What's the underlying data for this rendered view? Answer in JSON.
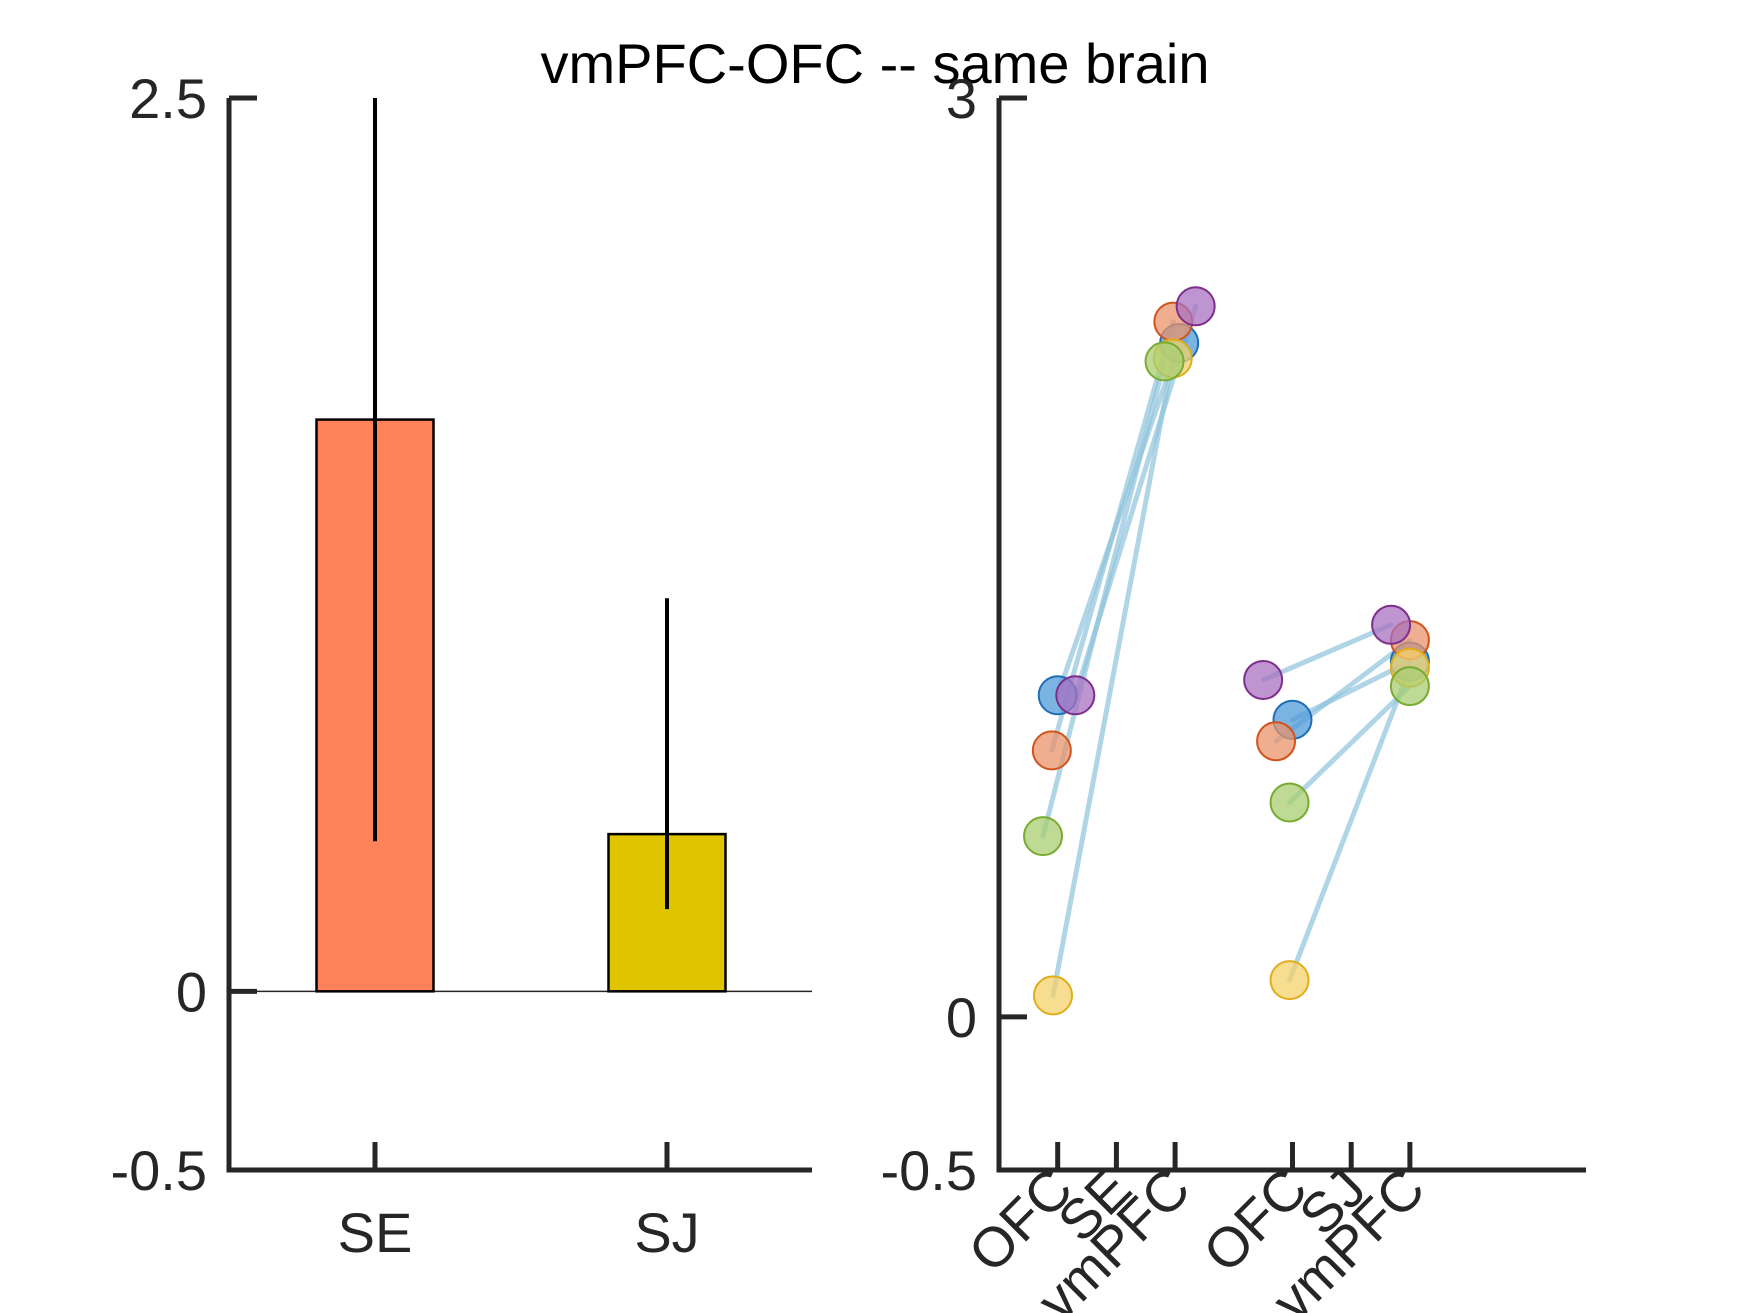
{
  "title": "vmPFC-OFC -- same brain",
  "chart_data": [
    {
      "type": "bar",
      "categories": [
        "SE",
        "SJ"
      ],
      "values": [
        1.6,
        0.44
      ],
      "error_low": [
        0.42,
        0.23
      ],
      "error_high": [
        2.5,
        1.1
      ],
      "colors": [
        "#ff8259",
        "#e0c400"
      ],
      "ylim": [
        -0.5,
        2.5
      ],
      "yticks": [
        "-0.5",
        "0",
        "2.5"
      ],
      "ytick_values": [
        -0.5,
        0,
        2.5
      ]
    },
    {
      "type": "scatter",
      "ylim": [
        -0.5,
        3
      ],
      "yticks": [
        "-0.5",
        "0",
        "3"
      ],
      "ytick_values": [
        -0.5,
        0,
        3
      ],
      "xtick_labels": [
        "OFC",
        "SE",
        "vmPFC",
        "OFC",
        "SJ",
        "vmPFC"
      ],
      "xtick_values": [
        1,
        2,
        3,
        5,
        6,
        7
      ],
      "xlim": [
        0,
        10
      ],
      "line_color": "#8fc3dc",
      "series": [
        {
          "color": "#4f9ad8",
          "edge": "#1f6fb6",
          "se": [
            1.05,
            2.2
          ],
          "sj": [
            0.97,
            1.16
          ]
        },
        {
          "color": "#e9936b",
          "edge": "#d2531b",
          "se": [
            0.87,
            2.27
          ],
          "sj": [
            0.9,
            1.23
          ]
        },
        {
          "color": "#f4d26b",
          "edge": "#e0ad1c",
          "se": [
            0.07,
            2.15
          ],
          "sj": [
            0.12,
            1.14
          ]
        },
        {
          "color": "#a872c0",
          "edge": "#7e2f8e",
          "se": [
            1.05,
            2.32
          ],
          "sj": [
            1.1,
            1.28
          ]
        },
        {
          "color": "#a8cd72",
          "edge": "#77ac30",
          "se": [
            0.59,
            2.14
          ],
          "sj": [
            0.7,
            1.08
          ]
        }
      ],
      "se_x_offsets": [
        [
          0.0,
          0.07
        ],
        [
          -0.1,
          -0.03
        ],
        [
          -0.08,
          -0.04
        ],
        [
          0.3,
          0.35
        ],
        [
          -0.25,
          -0.18
        ]
      ],
      "sj_x_offsets": [
        [
          0.0,
          0.0
        ],
        [
          -0.28,
          0.0
        ],
        [
          -0.05,
          0.0
        ],
        [
          -0.5,
          -0.32
        ],
        [
          -0.05,
          0.0
        ]
      ]
    }
  ]
}
